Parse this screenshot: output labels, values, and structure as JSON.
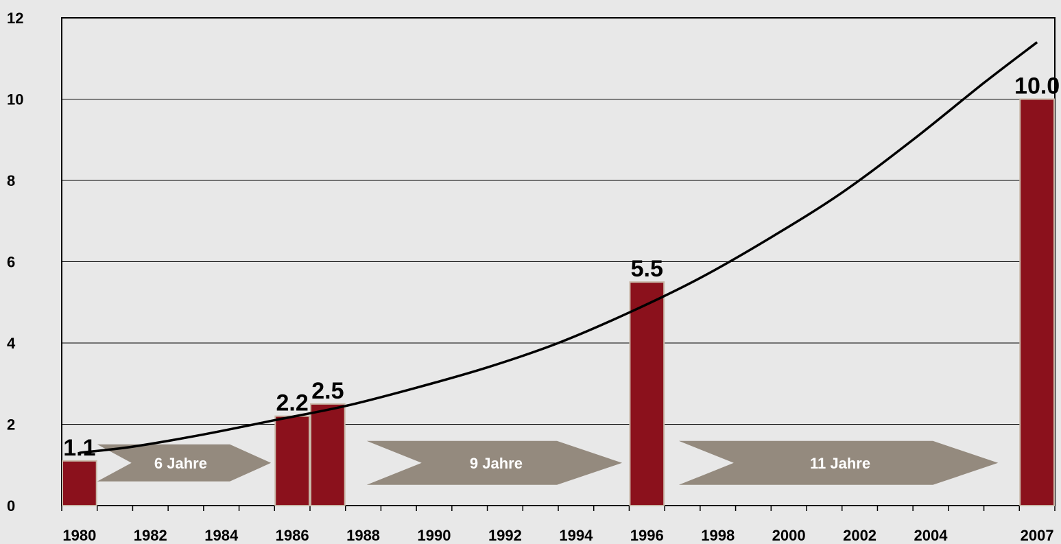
{
  "chart_data": {
    "type": "bar",
    "ylim": [
      0,
      12
    ],
    "y_ticks": [
      0,
      2,
      4,
      6,
      8,
      10,
      12
    ],
    "x_range": [
      1980,
      2008
    ],
    "x_tick_labels": [
      "1980",
      "1982",
      "1984",
      "1986",
      "1988",
      "1990",
      "1992",
      "1994",
      "1996",
      "1998",
      "2000",
      "2002",
      "2004",
      "2007"
    ],
    "bars": [
      {
        "year": 1980,
        "value": 1.1,
        "label": "1.1"
      },
      {
        "year": 1986,
        "value": 2.2,
        "label": "2.2"
      },
      {
        "year": 1987,
        "value": 2.5,
        "label": "2.5"
      },
      {
        "year": 1996,
        "value": 5.5,
        "label": "5.5"
      },
      {
        "year": 2007,
        "value": 10.0,
        "label": "10.0"
      }
    ],
    "trend_line": {
      "x": [
        1980.5,
        1982,
        1984,
        1986,
        1988,
        1990,
        1992,
        1994,
        1996,
        1998,
        2000,
        2002,
        2004,
        2006,
        2007.5
      ],
      "y": [
        1.3,
        1.45,
        1.75,
        2.1,
        2.45,
        2.9,
        3.4,
        4.0,
        4.75,
        5.6,
        6.6,
        7.7,
        9.0,
        10.4,
        11.4
      ]
    },
    "arrows": [
      {
        "label": "6 Jahre",
        "start": 1981,
        "end": 1985.9
      },
      {
        "label": "9 Jahre",
        "start": 1988.6,
        "end": 1995.8
      },
      {
        "label": "11 Jahre",
        "start": 1997.4,
        "end": 2006.4
      }
    ],
    "grid": true,
    "bar_color": "#8b111c",
    "arrow_color": "#948a7e"
  }
}
